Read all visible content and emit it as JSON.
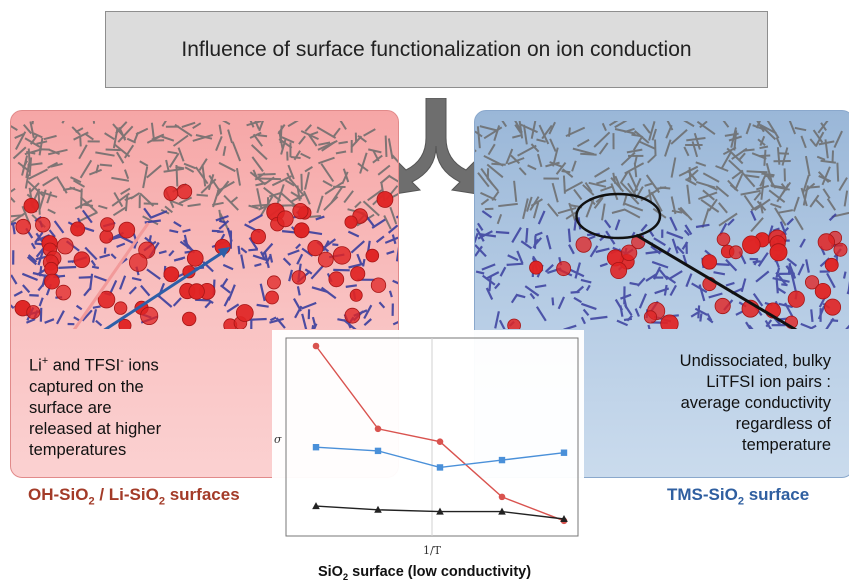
{
  "title": "Influence of surface functionalization on ion conduction",
  "left_panel": {
    "description_lines": [
      "captured on the",
      "surface are",
      "released at higher",
      "temperatures"
    ],
    "surface_label_a": "OH-SiO",
    "surface_label_sub_a": "2",
    "surface_label_b": " / Li-SiO",
    "surface_label_sub_b": "2",
    "surface_label_c": " surfaces"
  },
  "right_panel": {
    "description_lines": [
      "Undissociated, bulky",
      "LiTFSI ion pairs :",
      "average conductivity",
      "regardless of",
      "temperature"
    ],
    "surface_label_a": "TMS-SiO",
    "surface_label_sub": "2",
    "surface_label_b": " surface"
  },
  "bottom_label_a": "SiO",
  "bottom_label_sub": "2",
  "bottom_label_b": " surface (low conductivity)",
  "colors": {
    "red_series": "#d9534f",
    "blue_series": "#4a90d9",
    "black_series": "#222222",
    "left_panel": "#f8b6b6",
    "right_panel": "#b3c9e2"
  },
  "chart_data": {
    "type": "line",
    "xlabel": "1/T",
    "ylabel": "σ",
    "categories": [
      1,
      2,
      3,
      4,
      5
    ],
    "series": [
      {
        "color": "#d9534f",
        "marker": "circle",
        "values": [
          1.0,
          0.55,
          0.48,
          0.18,
          0.05
        ]
      },
      {
        "color": "#4a90d9",
        "marker": "square",
        "values": [
          0.45,
          0.43,
          0.34,
          0.38,
          0.42
        ]
      },
      {
        "color": "#222222",
        "marker": "triangle",
        "values": [
          0.13,
          0.11,
          0.1,
          0.1,
          0.06
        ]
      }
    ]
  }
}
